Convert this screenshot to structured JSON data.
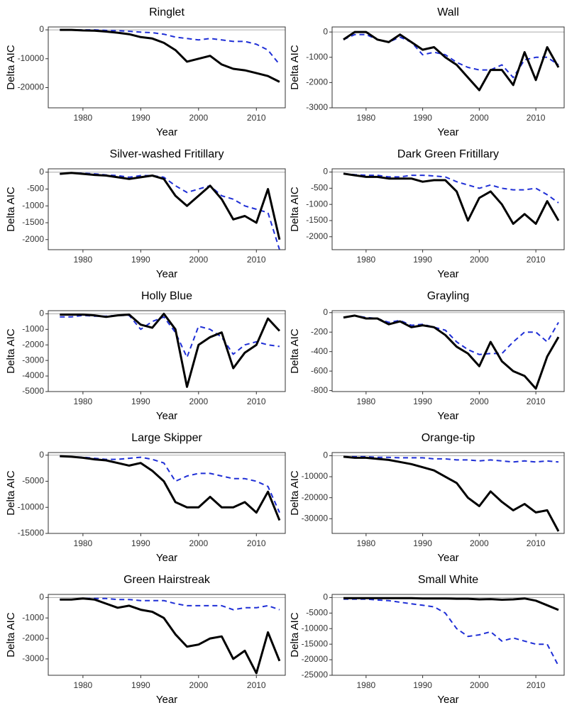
{
  "chart_data": [
    {
      "type": "line",
      "title": "Ringlet",
      "xlabel": "Year",
      "ylabel": "Delta AIC",
      "x": [
        1976,
        1978,
        1980,
        1982,
        1984,
        1986,
        1988,
        1990,
        1992,
        1994,
        1996,
        1998,
        2000,
        2002,
        2004,
        2006,
        2008,
        2010,
        2012,
        2014
      ],
      "xlim": [
        1974,
        2015
      ],
      "xticks": [
        1980,
        1990,
        2000,
        2010
      ],
      "ylim": [
        -27000,
        1000
      ],
      "yticks": [
        0,
        -10000,
        -20000
      ],
      "hline": 0,
      "series": [
        {
          "color": "#000000",
          "linestyle": "solid",
          "values": [
            0,
            0,
            -200,
            -300,
            -600,
            -1000,
            -1500,
            -2500,
            -3000,
            -4500,
            -7000,
            -11000,
            -10000,
            -9000,
            -12000,
            -13500,
            -14000,
            -15000,
            -16000,
            -18000
          ]
        },
        {
          "color": "#1f2fd6",
          "linestyle": "dashed",
          "values": [
            0,
            0,
            0,
            0,
            -200,
            -300,
            -500,
            -800,
            -1000,
            -1500,
            -2500,
            -3000,
            -3500,
            -3000,
            -3500,
            -4000,
            -4000,
            -5000,
            -7000,
            -12000
          ]
        }
      ]
    },
    {
      "type": "line",
      "title": "Wall",
      "xlabel": "Year",
      "ylabel": "Delta AIC",
      "x": [
        1976,
        1978,
        1980,
        1982,
        1984,
        1986,
        1988,
        1990,
        1992,
        1994,
        1996,
        1998,
        2000,
        2002,
        2004,
        2006,
        2008,
        2010,
        2012,
        2014
      ],
      "xlim": [
        1974,
        2015
      ],
      "xticks": [
        1980,
        1990,
        2000,
        2010
      ],
      "ylim": [
        -3000,
        200
      ],
      "yticks": [
        0,
        -1000,
        -2000,
        -3000
      ],
      "hline": 0,
      "series": [
        {
          "color": "#000000",
          "linestyle": "solid",
          "values": [
            -300,
            0,
            0,
            -300,
            -400,
            -100,
            -400,
            -700,
            -600,
            -1000,
            -1300,
            -1800,
            -2300,
            -1500,
            -1500,
            -2100,
            -800,
            -1900,
            -600,
            -1400
          ]
        },
        {
          "color": "#1f2fd6",
          "linestyle": "dashed",
          "values": [
            -300,
            -100,
            -100,
            -300,
            -400,
            -200,
            -400,
            -900,
            -800,
            -900,
            -1200,
            -1400,
            -1500,
            -1500,
            -1300,
            -1800,
            -1100,
            -1000,
            -1000,
            -1300
          ]
        }
      ]
    },
    {
      "type": "line",
      "title": "Silver-washed Fritillary",
      "xlabel": "Year",
      "ylabel": "Delta AIC",
      "x": [
        1976,
        1978,
        1980,
        1982,
        1984,
        1986,
        1988,
        1990,
        1992,
        1994,
        1996,
        1998,
        2000,
        2002,
        2004,
        2006,
        2008,
        2010,
        2012,
        2014
      ],
      "xlim": [
        1974,
        2015
      ],
      "xticks": [
        1980,
        1990,
        2000,
        2010
      ],
      "ylim": [
        -2300,
        100
      ],
      "yticks": [
        0,
        -500,
        -1000,
        -1500,
        -2000
      ],
      "hline": 0,
      "series": [
        {
          "color": "#000000",
          "linestyle": "solid",
          "values": [
            -50,
            -20,
            -50,
            -80,
            -100,
            -150,
            -200,
            -150,
            -100,
            -200,
            -700,
            -1000,
            -700,
            -400,
            -800,
            -1400,
            -1300,
            -1500,
            -500,
            -2000
          ]
        },
        {
          "color": "#1f2fd6",
          "linestyle": "dashed",
          "values": [
            -50,
            -20,
            -30,
            -50,
            -80,
            -100,
            -150,
            -100,
            -100,
            -150,
            -400,
            -600,
            -500,
            -400,
            -700,
            -800,
            -1000,
            -1100,
            -1200,
            -2300
          ]
        }
      ]
    },
    {
      "type": "line",
      "title": "Dark Green Fritillary",
      "xlabel": "Year",
      "ylabel": "Delta AIC",
      "x": [
        1976,
        1978,
        1980,
        1982,
        1984,
        1986,
        1988,
        1990,
        1992,
        1994,
        1996,
        1998,
        2000,
        2002,
        2004,
        2006,
        2008,
        2010,
        2012,
        2014
      ],
      "xlim": [
        1974,
        2015
      ],
      "xticks": [
        1980,
        1990,
        2000,
        2010
      ],
      "ylim": [
        -2400,
        100
      ],
      "yticks": [
        0,
        -500,
        -1000,
        -1500,
        -2000
      ],
      "hline": 0,
      "series": [
        {
          "color": "#000000",
          "linestyle": "solid",
          "values": [
            -50,
            -100,
            -150,
            -150,
            -200,
            -200,
            -200,
            -300,
            -250,
            -250,
            -600,
            -1500,
            -800,
            -600,
            -1000,
            -1600,
            -1300,
            -1600,
            -900,
            -1500
          ]
        },
        {
          "color": "#1f2fd6",
          "linestyle": "dashed",
          "values": [
            -50,
            -80,
            -100,
            -100,
            -150,
            -150,
            -100,
            -100,
            -120,
            -150,
            -300,
            -400,
            -500,
            -400,
            -500,
            -550,
            -550,
            -500,
            -700,
            -950
          ]
        }
      ]
    },
    {
      "type": "line",
      "title": "Holly Blue",
      "xlabel": "Year",
      "ylabel": "Delta AIC",
      "x": [
        1976,
        1978,
        1980,
        1982,
        1984,
        1986,
        1988,
        1990,
        1992,
        1994,
        1996,
        1998,
        2000,
        2002,
        2004,
        2006,
        2008,
        2010,
        2012,
        2014
      ],
      "xlim": [
        1974,
        2015
      ],
      "xticks": [
        1980,
        1990,
        2000,
        2010
      ],
      "ylim": [
        -5000,
        200
      ],
      "yticks": [
        0,
        -1000,
        -2000,
        -3000,
        -4000,
        -5000
      ],
      "hline": 0,
      "series": [
        {
          "color": "#000000",
          "linestyle": "solid",
          "values": [
            -50,
            -50,
            -50,
            -100,
            -200,
            -100,
            -50,
            -700,
            -900,
            0,
            -1000,
            -4700,
            -2000,
            -1500,
            -1200,
            -3500,
            -2500,
            -2000,
            -300,
            -1100
          ]
        },
        {
          "color": "#1f2fd6",
          "linestyle": "dashed",
          "values": [
            -200,
            -200,
            -100,
            -150,
            -150,
            -100,
            -100,
            -1000,
            -500,
            -200,
            -1200,
            -2800,
            -800,
            -1000,
            -1500,
            -2600,
            -2000,
            -1800,
            -2000,
            -2100
          ]
        }
      ]
    },
    {
      "type": "line",
      "title": "Grayling",
      "xlabel": "Year",
      "ylabel": "Delta AIC",
      "x": [
        1976,
        1978,
        1980,
        1982,
        1984,
        1986,
        1988,
        1990,
        1992,
        1994,
        1996,
        1998,
        2000,
        2002,
        2004,
        2006,
        2008,
        2010,
        2012,
        2014
      ],
      "xlim": [
        1974,
        2015
      ],
      "xticks": [
        1980,
        1990,
        2000,
        2010
      ],
      "ylim": [
        -810,
        20
      ],
      "yticks": [
        0,
        -200,
        -400,
        -600,
        -800
      ],
      "hline": 0,
      "series": [
        {
          "color": "#000000",
          "linestyle": "solid",
          "values": [
            -50,
            -30,
            -60,
            -60,
            -120,
            -90,
            -150,
            -130,
            -150,
            -230,
            -350,
            -420,
            -550,
            -300,
            -500,
            -600,
            -650,
            -780,
            -450,
            -250
          ]
        },
        {
          "color": "#1f2fd6",
          "linestyle": "dashed",
          "values": [
            -50,
            -30,
            -50,
            -60,
            -100,
            -80,
            -130,
            -120,
            -150,
            -180,
            -300,
            -380,
            -430,
            -420,
            -420,
            -300,
            -200,
            -200,
            -300,
            -100
          ]
        }
      ]
    },
    {
      "type": "line",
      "title": "Large Skipper",
      "xlabel": "Year",
      "ylabel": "Delta AIC",
      "x": [
        1976,
        1978,
        1980,
        1982,
        1984,
        1986,
        1988,
        1990,
        1992,
        1994,
        1996,
        1998,
        2000,
        2002,
        2004,
        2006,
        2008,
        2010,
        2012,
        2014
      ],
      "xlim": [
        1974,
        2015
      ],
      "xticks": [
        1980,
        1990,
        2000,
        2010
      ],
      "ylim": [
        -15000,
        500
      ],
      "yticks": [
        0,
        -5000,
        -10000,
        -15000
      ],
      "hline": 0,
      "series": [
        {
          "color": "#000000",
          "linestyle": "solid",
          "values": [
            -200,
            -300,
            -500,
            -800,
            -1000,
            -1500,
            -2000,
            -1500,
            -3000,
            -5000,
            -9000,
            -10000,
            -10000,
            -8000,
            -10000,
            -10000,
            -9000,
            -11000,
            -7000,
            -12500
          ]
        },
        {
          "color": "#1f2fd6",
          "linestyle": "dashed",
          "values": [
            -200,
            -300,
            -400,
            -600,
            -800,
            -800,
            -600,
            -400,
            -800,
            -1500,
            -5000,
            -4000,
            -3500,
            -3500,
            -4000,
            -4500,
            -4500,
            -5000,
            -6000,
            -11000
          ]
        }
      ]
    },
    {
      "type": "line",
      "title": "Orange-tip",
      "xlabel": "Year",
      "ylabel": "Delta AIC",
      "x": [
        1976,
        1978,
        1980,
        1982,
        1984,
        1986,
        1988,
        1990,
        1992,
        1994,
        1996,
        1998,
        2000,
        2002,
        2004,
        2006,
        2008,
        2010,
        2012,
        2014
      ],
      "xlim": [
        1974,
        2015
      ],
      "xticks": [
        1980,
        1990,
        2000,
        2010
      ],
      "ylim": [
        -37000,
        1500
      ],
      "yticks": [
        0,
        -10000,
        -20000,
        -30000
      ],
      "hline": 0,
      "series": [
        {
          "color": "#000000",
          "linestyle": "solid",
          "values": [
            -500,
            -1000,
            -1000,
            -1500,
            -2000,
            -3000,
            -4000,
            -5500,
            -7000,
            -10000,
            -13000,
            -20000,
            -24000,
            -17000,
            -22000,
            -26000,
            -23000,
            -27000,
            -26000,
            -36000
          ]
        },
        {
          "color": "#1f2fd6",
          "linestyle": "dashed",
          "values": [
            -500,
            -500,
            -500,
            -800,
            -800,
            -1000,
            -1000,
            -1000,
            -1500,
            -1500,
            -2000,
            -2000,
            -2500,
            -2000,
            -2500,
            -3000,
            -2500,
            -3000,
            -2500,
            -3000
          ]
        }
      ]
    },
    {
      "type": "line",
      "title": "Green Hairstreak",
      "xlabel": "Year",
      "ylabel": "Delta AIC",
      "x": [
        1976,
        1978,
        1980,
        1982,
        1984,
        1986,
        1988,
        1990,
        1992,
        1994,
        1996,
        1998,
        2000,
        2002,
        2004,
        2006,
        2008,
        2010,
        2012,
        2014
      ],
      "xlim": [
        1974,
        2015
      ],
      "xticks": [
        1980,
        1990,
        2000,
        2010
      ],
      "ylim": [
        -3800,
        150
      ],
      "yticks": [
        0,
        -1000,
        -2000,
        -3000
      ],
      "hline": 0,
      "series": [
        {
          "color": "#000000",
          "linestyle": "solid",
          "values": [
            -100,
            -100,
            -50,
            -100,
            -300,
            -500,
            -400,
            -600,
            -700,
            -1000,
            -1800,
            -2400,
            -2300,
            -2000,
            -1900,
            -3000,
            -2600,
            -3700,
            -1700,
            -3100
          ]
        },
        {
          "color": "#1f2fd6",
          "linestyle": "dashed",
          "values": [
            -100,
            -100,
            -50,
            -50,
            -50,
            -100,
            -100,
            -150,
            -150,
            -150,
            -300,
            -400,
            -400,
            -400,
            -400,
            -600,
            -500,
            -500,
            -400,
            -600
          ]
        }
      ]
    },
    {
      "type": "line",
      "title": "Small White",
      "xlabel": "Year",
      "ylabel": "Delta AIC",
      "x": [
        1976,
        1978,
        1980,
        1982,
        1984,
        1986,
        1988,
        1990,
        1992,
        1994,
        1996,
        1998,
        2000,
        2002,
        2004,
        2006,
        2008,
        2010,
        2012,
        2014
      ],
      "xlim": [
        1974,
        2015
      ],
      "xticks": [
        1980,
        1990,
        2000,
        2010
      ],
      "ylim": [
        -25000,
        1000
      ],
      "yticks": [
        0,
        -5000,
        -10000,
        -15000,
        -20000,
        -25000
      ],
      "hline": 0,
      "series": [
        {
          "color": "#000000",
          "linestyle": "solid",
          "values": [
            -200,
            -200,
            -200,
            -200,
            -200,
            -200,
            -200,
            -300,
            -300,
            -300,
            -400,
            -400,
            -600,
            -500,
            -700,
            -600,
            -300,
            -1000,
            -2500,
            -4000
          ]
        },
        {
          "color": "#1f2fd6",
          "linestyle": "dashed",
          "values": [
            -500,
            -500,
            -500,
            -800,
            -1000,
            -1500,
            -2000,
            -2500,
            -3000,
            -5000,
            -10000,
            -12500,
            -12000,
            -11000,
            -14000,
            -13000,
            -14000,
            -15000,
            -15000,
            -22000
          ]
        }
      ]
    }
  ]
}
